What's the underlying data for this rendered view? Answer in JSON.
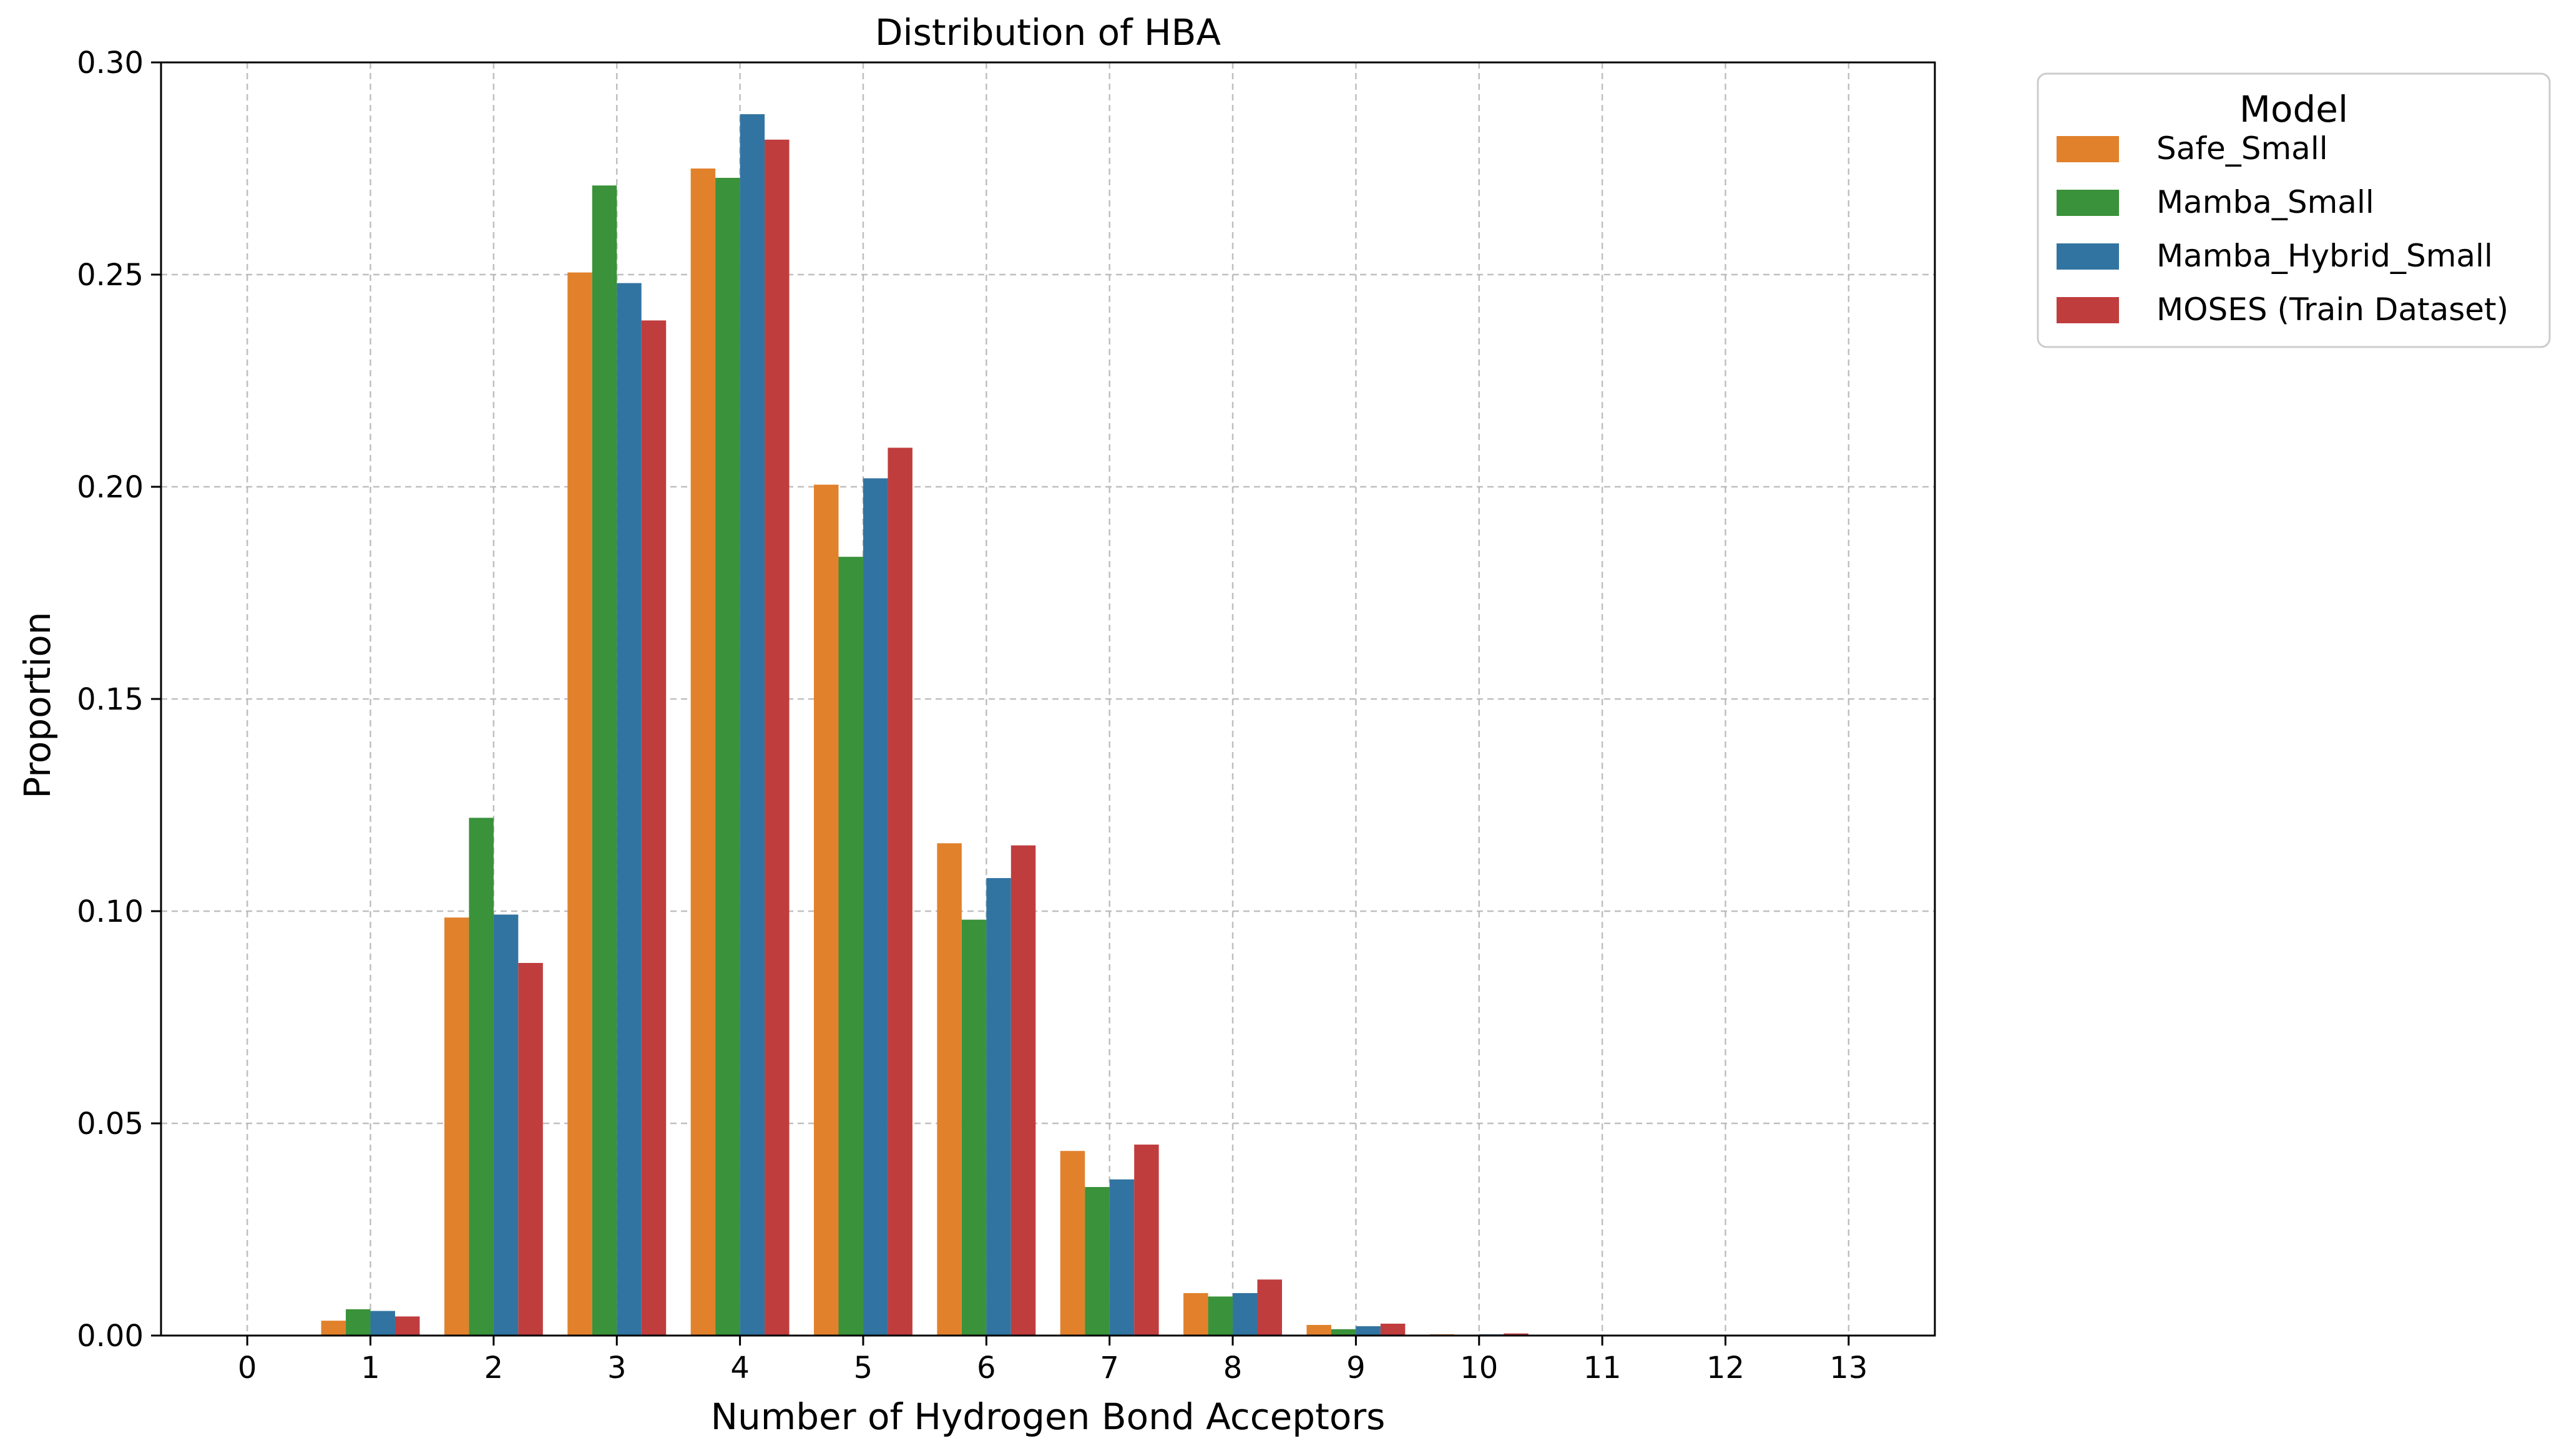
{
  "chart_data": {
    "type": "bar",
    "title": "Distribution of HBA",
    "xlabel": "Number of Hydrogen Bond Acceptors",
    "ylabel": "Proportion",
    "categories": [
      "0",
      "1",
      "2",
      "3",
      "4",
      "5",
      "6",
      "7",
      "8",
      "9",
      "10",
      "11",
      "12",
      "13"
    ],
    "ylim": [
      0,
      0.3
    ],
    "yticks": [
      "0.00",
      "0.05",
      "0.10",
      "0.15",
      "0.20",
      "0.25",
      "0.30"
    ],
    "grid": true,
    "legend": {
      "title": "Model",
      "placement": "outside top-right"
    },
    "series": [
      {
        "name": "Safe_Small",
        "color": "#e1812c",
        "values": [
          0.0,
          0.0035,
          0.0985,
          0.2505,
          0.275,
          0.2005,
          0.116,
          0.0435,
          0.01,
          0.0025,
          0.0003,
          0.0,
          0.0,
          0.0
        ]
      },
      {
        "name": "Mamba_Small",
        "color": "#3a923a",
        "values": [
          0.0,
          0.0062,
          0.122,
          0.271,
          0.2728,
          0.1835,
          0.098,
          0.035,
          0.0092,
          0.0015,
          0.0002,
          0.0,
          0.0,
          0.0
        ]
      },
      {
        "name": "Mamba_Hybrid_Small",
        "color": "#3274a1",
        "values": [
          0.0,
          0.0058,
          0.0992,
          0.248,
          0.2878,
          0.202,
          0.1078,
          0.0368,
          0.01,
          0.0022,
          0.0003,
          0.0,
          0.0,
          0.0
        ]
      },
      {
        "name": "MOSES (Train Dataset)",
        "color": "#c03d3e",
        "values": [
          0.0,
          0.0045,
          0.0878,
          0.2392,
          0.2818,
          0.2092,
          0.1155,
          0.045,
          0.0132,
          0.0028,
          0.0005,
          0.0,
          0.0,
          0.0
        ]
      }
    ]
  }
}
